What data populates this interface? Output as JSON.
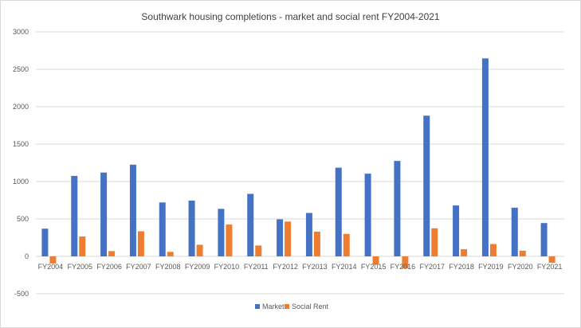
{
  "chart_data": {
    "type": "bar",
    "title": "Southwark housing completions - market and social rent FY2004-2021",
    "xlabel": "",
    "ylabel": "",
    "ylim": [
      -500,
      3000
    ],
    "yticks": [
      3000,
      2500,
      2000,
      1500,
      1000,
      500,
      0,
      -500
    ],
    "grid": true,
    "legend_position": "bottom",
    "categories": [
      "FY2004",
      "FY2005",
      "FY2006",
      "FY2007",
      "FY2008",
      "FY2009",
      "FY2010",
      "FY2011",
      "FY2012",
      "FY2013",
      "FY2014",
      "FY2015",
      "FY2016",
      "FY2017",
      "FY2018",
      "FY2019",
      "FY2020",
      "FY2021"
    ],
    "series": [
      {
        "name": "Market",
        "color": "#4472C4",
        "values": [
          370,
          1075,
          1120,
          1225,
          720,
          745,
          635,
          835,
          495,
          580,
          1185,
          1105,
          1275,
          1880,
          680,
          2645,
          650,
          445
        ]
      },
      {
        "name": "Social Rent",
        "color": "#ED7D31",
        "values": [
          -95,
          265,
          70,
          335,
          60,
          155,
          425,
          145,
          465,
          330,
          300,
          -110,
          -160,
          375,
          95,
          165,
          75,
          -85
        ]
      }
    ]
  }
}
